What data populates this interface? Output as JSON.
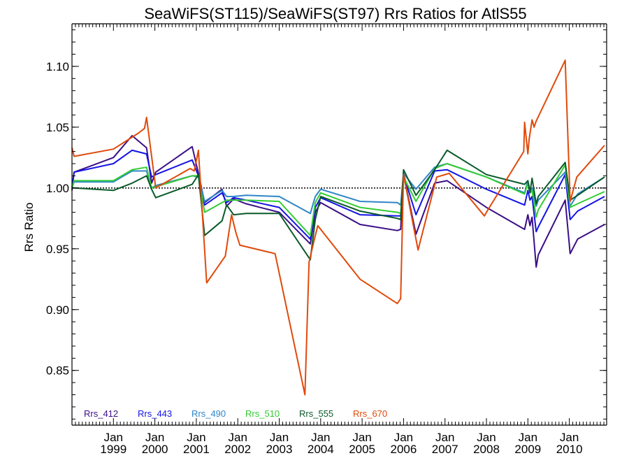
{
  "chart_data": {
    "type": "line",
    "title": "SeaWiFS(ST115)/SeaWiFS(ST97)  Rrs Ratios for AtlS55",
    "xlabel": "",
    "ylabel": "Rrs Ratio",
    "xlim": [
      1998.0,
      2010.9
    ],
    "ylim": [
      0.805,
      1.135
    ],
    "yticks": [
      0.85,
      0.9,
      0.95,
      1.0,
      1.05,
      1.1
    ],
    "ytick_labels": [
      "0.85",
      "0.90",
      "0.95",
      "1.00",
      "1.05",
      "1.10"
    ],
    "xticks": [
      {
        "x": 1999.0,
        "top": "Jan",
        "bottom": "1999"
      },
      {
        "x": 2000.0,
        "top": "Jan",
        "bottom": "2000"
      },
      {
        "x": 2001.0,
        "top": "Jan",
        "bottom": "2001"
      },
      {
        "x": 2002.0,
        "top": "Jan",
        "bottom": "2002"
      },
      {
        "x": 2003.0,
        "top": "Jan",
        "bottom": "2003"
      },
      {
        "x": 2004.0,
        "top": "Jan",
        "bottom": "2004"
      },
      {
        "x": 2005.0,
        "top": "Jan",
        "bottom": "2005"
      },
      {
        "x": 2006.0,
        "top": "Jan",
        "bottom": "2006"
      },
      {
        "x": 2007.0,
        "top": "Jan",
        "bottom": "2007"
      },
      {
        "x": 2008.0,
        "top": "Jan",
        "bottom": "2008"
      },
      {
        "x": 2009.0,
        "top": "Jan",
        "bottom": "2009"
      },
      {
        "x": 2010.0,
        "top": "Jan",
        "bottom": "2010"
      }
    ],
    "reference_line": 1.0,
    "grid": false,
    "legend_position": "bottom-left",
    "series": [
      {
        "name": "Rrs_412",
        "color": "#3b0f86",
        "x": [
          1998.0,
          1998.05,
          1999.0,
          1999.45,
          1999.8,
          1999.92,
          2000.02,
          2000.9,
          2001.05,
          2001.2,
          2001.62,
          2001.73,
          2001.9,
          2002.2,
          2003.0,
          2003.75,
          2003.87,
          2004.0,
          2004.95,
          2005.85,
          2005.93,
          2006.0,
          2006.3,
          2006.75,
          2007.05,
          2008.0,
          2008.92,
          2009.0,
          2009.05,
          2009.1,
          2009.2,
          2009.25,
          2009.9,
          2010.02,
          2010.2,
          2010.85
        ],
        "y": [
          0.998,
          1.013,
          1.025,
          1.043,
          1.033,
          1.004,
          1.013,
          1.034,
          1.012,
          0.988,
          0.999,
          0.985,
          0.991,
          0.987,
          0.98,
          0.954,
          0.98,
          0.988,
          0.97,
          0.965,
          0.966,
          1.011,
          0.962,
          1.004,
          1.006,
          0.984,
          0.966,
          0.978,
          0.969,
          0.976,
          0.935,
          0.945,
          0.99,
          0.946,
          0.958,
          0.97
        ]
      },
      {
        "name": "Rrs_443",
        "color": "#1414e6",
        "x": [
          1998.0,
          1998.05,
          1999.0,
          1999.45,
          1999.8,
          1999.92,
          2000.02,
          2000.9,
          2001.05,
          2001.2,
          2001.62,
          2001.73,
          2001.9,
          2002.2,
          2003.0,
          2003.75,
          2003.87,
          2004.0,
          2004.95,
          2005.85,
          2005.93,
          2006.0,
          2006.3,
          2006.75,
          2007.05,
          2008.0,
          2008.92,
          2009.0,
          2009.05,
          2009.1,
          2009.2,
          2009.25,
          2009.9,
          2010.02,
          2010.2,
          2010.85
        ],
        "y": [
          1.0,
          1.013,
          1.02,
          1.031,
          1.028,
          1.009,
          1.011,
          1.023,
          1.01,
          0.986,
          0.996,
          0.988,
          0.992,
          0.99,
          0.984,
          0.958,
          0.984,
          0.992,
          0.978,
          0.977,
          0.977,
          1.011,
          0.978,
          1.014,
          1.015,
          0.999,
          0.986,
          0.998,
          0.99,
          0.993,
          0.964,
          0.968,
          1.011,
          0.974,
          0.981,
          0.993
        ]
      },
      {
        "name": "Rrs_490",
        "color": "#2f86c8",
        "x": [
          1998.0,
          1998.05,
          1999.0,
          1999.45,
          1999.8,
          1999.92,
          2000.02,
          2000.9,
          2001.05,
          2001.2,
          2001.62,
          2001.73,
          2001.9,
          2002.2,
          2003.0,
          2003.75,
          2003.87,
          2004.0,
          2004.95,
          2005.85,
          2005.93,
          2006.0,
          2006.3,
          2006.75,
          2007.05,
          2008.0,
          2008.92,
          2009.0,
          2009.05,
          2009.1,
          2009.2,
          2009.25,
          2009.9,
          2010.02,
          2010.2,
          2010.85
        ],
        "y": [
          1.0,
          1.005,
          1.005,
          1.014,
          1.014,
          1.0,
          1.002,
          1.01,
          1.009,
          0.989,
          0.998,
          0.993,
          0.993,
          0.994,
          0.993,
          0.979,
          0.993,
          0.999,
          0.989,
          0.988,
          0.986,
          1.012,
          0.999,
          1.017,
          1.02,
          1.009,
          0.996,
          1.006,
          0.998,
          1.0,
          0.985,
          0.99,
          1.013,
          0.985,
          0.995,
          1.009
        ]
      },
      {
        "name": "Rrs_510",
        "color": "#33cc33",
        "x": [
          1998.0,
          1998.05,
          1999.0,
          1999.45,
          1999.8,
          1999.92,
          2000.02,
          2000.9,
          2001.05,
          2001.2,
          2001.62,
          2001.73,
          2001.9,
          2002.2,
          2003.0,
          2003.75,
          2003.87,
          2004.0,
          2004.95,
          2005.85,
          2005.93,
          2006.0,
          2006.3,
          2006.75,
          2007.05,
          2008.0,
          2008.92,
          2009.0,
          2009.05,
          2009.1,
          2009.2,
          2009.25,
          2009.9,
          2010.02,
          2010.2,
          2010.85
        ],
        "y": [
          1.0,
          1.006,
          1.006,
          1.015,
          1.017,
          1.0,
          1.001,
          1.01,
          1.01,
          0.98,
          0.988,
          0.99,
          0.99,
          0.99,
          0.989,
          0.961,
          0.988,
          0.996,
          0.984,
          0.98,
          0.979,
          1.009,
          0.989,
          1.016,
          1.02,
          1.009,
          0.995,
          1.004,
          0.996,
          0.998,
          0.976,
          0.982,
          1.019,
          0.984,
          0.987,
          0.997
        ]
      },
      {
        "name": "Rrs_555",
        "color": "#0a5a2a",
        "x": [
          1998.0,
          1998.05,
          1999.0,
          1999.45,
          1999.8,
          1999.92,
          2000.02,
          2000.9,
          2001.05,
          2001.2,
          2001.62,
          2001.73,
          2001.9,
          2002.2,
          2003.0,
          2003.75,
          2003.87,
          2004.0,
          2004.95,
          2005.85,
          2005.93,
          2006.0,
          2006.3,
          2006.75,
          2007.05,
          2008.0,
          2008.92,
          2009.0,
          2009.05,
          2009.1,
          2009.2,
          2009.25,
          2009.9,
          2010.02,
          2010.2,
          2010.85
        ],
        "y": [
          1.0,
          1.0,
          0.998,
          1.004,
          1.01,
          0.999,
          0.992,
          1.003,
          1.011,
          0.961,
          0.973,
          0.986,
          0.978,
          0.979,
          0.979,
          0.941,
          0.974,
          0.993,
          0.981,
          0.975,
          0.974,
          1.015,
          0.994,
          1.015,
          1.031,
          1.011,
          1.003,
          1.006,
          0.996,
          1.008,
          0.987,
          0.993,
          1.021,
          0.99,
          0.994,
          1.009
        ]
      },
      {
        "name": "Rrs_670",
        "color": "#e04a0a",
        "x": [
          1998.0,
          1998.05,
          1999.0,
          1999.6,
          1999.75,
          1999.8,
          2000.02,
          2000.85,
          2000.95,
          2001.05,
          2001.25,
          2001.7,
          2001.85,
          2001.95,
          2002.05,
          2002.9,
          2003.62,
          2003.72,
          2003.85,
          2003.93,
          2004.95,
          2005.85,
          2005.93,
          2006.0,
          2006.35,
          2006.8,
          2007.1,
          2007.95,
          2008.0,
          2008.9,
          2008.92,
          2009.0,
          2009.03,
          2009.1,
          2009.15,
          2009.2,
          2009.9,
          2010.02,
          2010.18,
          2010.85
        ],
        "y": [
          1.033,
          1.026,
          1.032,
          1.045,
          1.049,
          1.058,
          1.0,
          1.016,
          1.014,
          1.031,
          0.922,
          0.944,
          0.978,
          0.964,
          0.953,
          0.946,
          0.83,
          0.939,
          0.958,
          0.969,
          0.925,
          0.905,
          0.909,
          1.011,
          0.949,
          1.009,
          1.012,
          0.977,
          0.98,
          1.03,
          1.054,
          1.028,
          1.04,
          1.056,
          1.05,
          1.055,
          1.105,
          0.989,
          1.009,
          1.035
        ]
      }
    ]
  }
}
